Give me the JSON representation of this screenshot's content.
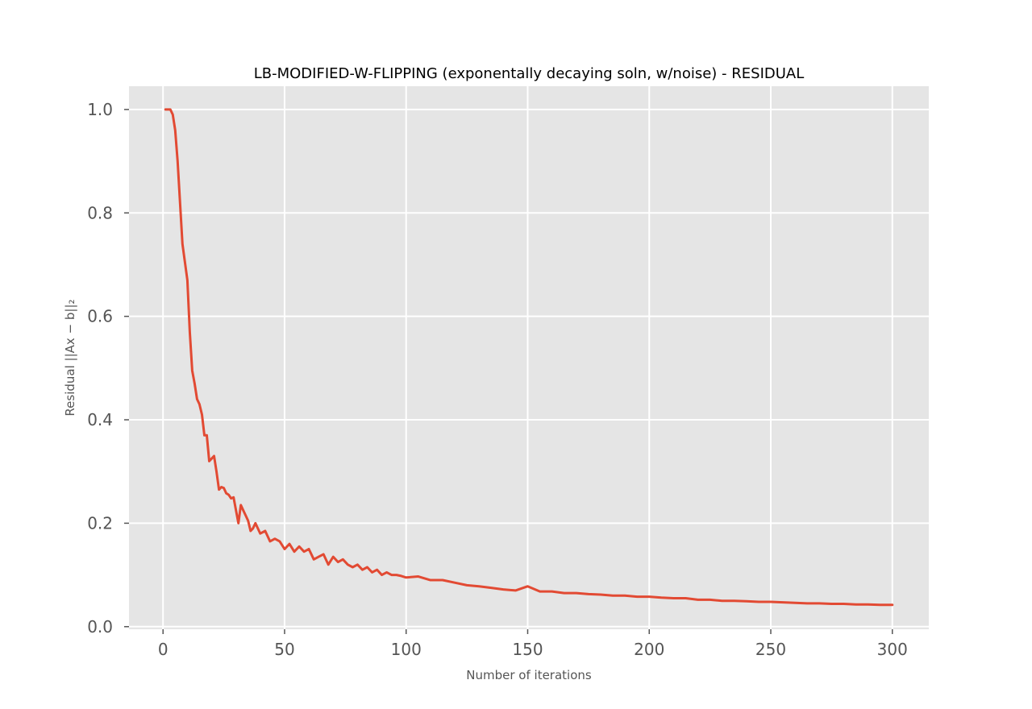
{
  "chart_data": {
    "type": "line",
    "title": "LB-MODIFIED-W-FLIPPING (exponentally decaying soln, w/noise) - RESIDUAL",
    "xlabel": "Number of iterations",
    "ylabel": "Residual ||Ax − b||₂",
    "xlim": [
      -14,
      315
    ],
    "ylim": [
      -0.005,
      1.045
    ],
    "xticks": [
      0,
      50,
      100,
      150,
      200,
      250,
      300
    ],
    "yticks": [
      0.0,
      0.2,
      0.4,
      0.6,
      0.8,
      1.0
    ],
    "xtick_labels": [
      "0",
      "50",
      "100",
      "150",
      "200",
      "250",
      "300"
    ],
    "ytick_labels": [
      "0.0",
      "0.2",
      "0.4",
      "0.6",
      "0.8",
      "1.0"
    ],
    "grid": true,
    "legend": "none",
    "colors": {
      "line": "#E24A33",
      "plot_background": "#E5E5E5",
      "grid": "#FFFFFF",
      "figure_background": "#FFFFFF"
    },
    "series": [
      {
        "x": [
          1,
          3,
          4,
          5,
          6,
          8,
          10,
          11,
          12,
          13,
          14,
          15,
          16,
          17,
          18,
          19,
          20,
          21,
          22,
          23,
          24,
          25,
          26,
          27,
          28,
          29,
          30,
          31,
          32,
          33,
          34,
          35,
          36,
          37,
          38,
          40,
          42,
          44,
          46,
          48,
          50,
          52,
          54,
          56,
          58,
          60,
          62,
          64,
          66,
          68,
          70,
          72,
          74,
          76,
          78,
          80,
          82,
          84,
          86,
          88,
          90,
          92,
          94,
          96,
          98,
          100,
          105,
          110,
          115,
          120,
          125,
          130,
          135,
          140,
          145,
          150,
          155,
          160,
          165,
          170,
          175,
          180,
          185,
          190,
          195,
          200,
          205,
          210,
          215,
          220,
          225,
          230,
          235,
          240,
          245,
          250,
          255,
          260,
          265,
          270,
          275,
          280,
          285,
          290,
          295,
          300
        ],
        "y": [
          1.0,
          1.0,
          0.99,
          0.96,
          0.9,
          0.74,
          0.67,
          0.57,
          0.495,
          0.47,
          0.44,
          0.43,
          0.41,
          0.37,
          0.37,
          0.32,
          0.325,
          0.33,
          0.3,
          0.265,
          0.27,
          0.268,
          0.258,
          0.255,
          0.248,
          0.25,
          0.225,
          0.2,
          0.235,
          0.225,
          0.215,
          0.205,
          0.185,
          0.19,
          0.2,
          0.18,
          0.185,
          0.165,
          0.17,
          0.165,
          0.15,
          0.16,
          0.145,
          0.155,
          0.145,
          0.15,
          0.13,
          0.135,
          0.14,
          0.12,
          0.135,
          0.125,
          0.13,
          0.12,
          0.115,
          0.12,
          0.11,
          0.115,
          0.105,
          0.11,
          0.1,
          0.105,
          0.1,
          0.1,
          0.098,
          0.095,
          0.097,
          0.09,
          0.09,
          0.085,
          0.08,
          0.078,
          0.075,
          0.072,
          0.07,
          0.078,
          0.068,
          0.068,
          0.065,
          0.065,
          0.063,
          0.062,
          0.06,
          0.06,
          0.058,
          0.058,
          0.056,
          0.055,
          0.055,
          0.052,
          0.052,
          0.05,
          0.05,
          0.049,
          0.048,
          0.048,
          0.047,
          0.046,
          0.045,
          0.045,
          0.044,
          0.044,
          0.043,
          0.043,
          0.042,
          0.042
        ]
      }
    ]
  }
}
